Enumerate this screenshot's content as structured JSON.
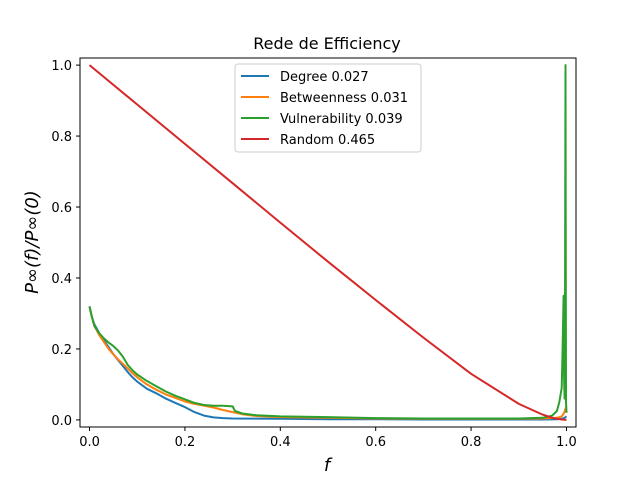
{
  "chart_data": {
    "type": "line",
    "title": "Rede de Efficiency",
    "xlabel": "f",
    "ylabel": "P∞(f)/P∞(0)",
    "xlim": [
      -0.02,
      1.02
    ],
    "ylim": [
      -0.02,
      1.02
    ],
    "xticks": [
      "0.0",
      "0.2",
      "0.4",
      "0.6",
      "0.8",
      "1.0"
    ],
    "yticks": [
      "0.0",
      "0.2",
      "0.4",
      "0.6",
      "0.8",
      "1.0"
    ],
    "grid": false,
    "legend_position": "upper-center",
    "series": [
      {
        "name": "Degree 0.027",
        "color": "#1f77b4",
        "x": [
          0,
          0.005,
          0.01,
          0.02,
          0.03,
          0.04,
          0.05,
          0.06,
          0.07,
          0.08,
          0.09,
          0.1,
          0.12,
          0.14,
          0.16,
          0.18,
          0.2,
          0.22,
          0.24,
          0.26,
          0.28,
          0.3,
          0.4,
          0.5,
          0.6,
          0.7,
          0.8,
          0.9,
          0.95,
          0.98,
          0.99,
          0.995,
          1.0
        ],
        "y": [
          0.32,
          0.29,
          0.27,
          0.245,
          0.225,
          0.205,
          0.185,
          0.168,
          0.152,
          0.135,
          0.12,
          0.108,
          0.088,
          0.075,
          0.06,
          0.048,
          0.036,
          0.022,
          0.012,
          0.007,
          0.005,
          0.004,
          0.003,
          0.002,
          0.002,
          0.001,
          0.001,
          0.001,
          0.001,
          0.002,
          0.003,
          0.005,
          0.01
        ]
      },
      {
        "name": "Betweenness 0.031",
        "color": "#ff7f0e",
        "x": [
          0,
          0.005,
          0.01,
          0.02,
          0.03,
          0.04,
          0.05,
          0.06,
          0.07,
          0.08,
          0.09,
          0.1,
          0.12,
          0.14,
          0.16,
          0.18,
          0.2,
          0.22,
          0.24,
          0.26,
          0.28,
          0.3,
          0.32,
          0.35,
          0.4,
          0.5,
          0.6,
          0.7,
          0.8,
          0.9,
          0.95,
          0.98,
          0.99,
          0.995,
          1.0
        ],
        "y": [
          0.32,
          0.29,
          0.265,
          0.24,
          0.22,
          0.2,
          0.185,
          0.17,
          0.158,
          0.145,
          0.132,
          0.12,
          0.1,
          0.085,
          0.072,
          0.062,
          0.052,
          0.045,
          0.04,
          0.035,
          0.028,
          0.022,
          0.016,
          0.011,
          0.008,
          0.006,
          0.004,
          0.003,
          0.003,
          0.003,
          0.004,
          0.006,
          0.01,
          0.02,
          0.04
        ]
      },
      {
        "name": "Vulnerability 0.039",
        "color": "#2ca02c",
        "x": [
          0,
          0.005,
          0.01,
          0.02,
          0.03,
          0.04,
          0.05,
          0.06,
          0.07,
          0.08,
          0.09,
          0.1,
          0.12,
          0.14,
          0.16,
          0.18,
          0.2,
          0.22,
          0.24,
          0.26,
          0.28,
          0.3,
          0.305,
          0.32,
          0.35,
          0.4,
          0.5,
          0.6,
          0.7,
          0.8,
          0.9,
          0.95,
          0.97,
          0.98,
          0.985,
          0.99,
          0.992,
          0.994,
          0.995,
          0.996,
          0.997,
          0.998,
          0.999,
          1.0
        ],
        "y": [
          0.32,
          0.29,
          0.265,
          0.245,
          0.23,
          0.218,
          0.208,
          0.195,
          0.178,
          0.155,
          0.14,
          0.128,
          0.11,
          0.095,
          0.08,
          0.068,
          0.058,
          0.048,
          0.042,
          0.04,
          0.04,
          0.038,
          0.025,
          0.018,
          0.013,
          0.01,
          0.008,
          0.005,
          0.004,
          0.004,
          0.004,
          0.006,
          0.012,
          0.025,
          0.05,
          0.09,
          0.2,
          0.35,
          0.12,
          0.06,
          0.3,
          1.0,
          0.05,
          0.02
        ]
      },
      {
        "name": "Random 0.465",
        "color": "#d62728",
        "x": [
          0,
          0.1,
          0.2,
          0.3,
          0.4,
          0.5,
          0.6,
          0.7,
          0.8,
          0.9,
          0.95,
          0.97,
          0.98,
          0.99,
          1.0
        ],
        "y": [
          1.0,
          0.889,
          0.778,
          0.667,
          0.556,
          0.446,
          0.338,
          0.232,
          0.13,
          0.045,
          0.015,
          0.006,
          0.003,
          0.001,
          0.0
        ]
      }
    ]
  }
}
